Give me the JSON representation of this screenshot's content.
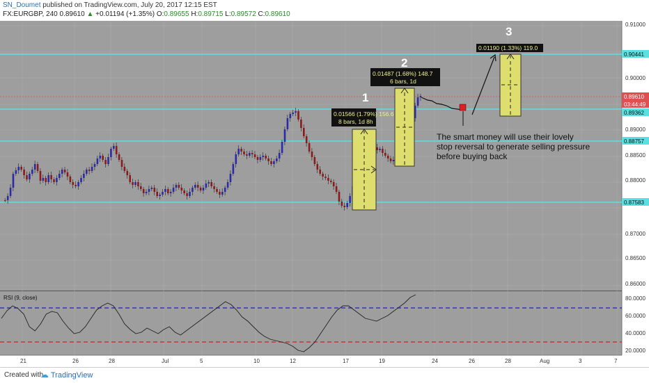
{
  "header": {
    "user": "SN_Doumet",
    "published_text": "published on TradingView.com, July 20, 2017 12:15 EST",
    "symbol": "FX:EURGBP, 240",
    "last": "0.89610",
    "arrow": "▲",
    "change": "+0.01194 (+1.35%)",
    "o_label": "O:",
    "o_val": "0.89655",
    "h_label": "H:",
    "h_val": "0.89715",
    "l_label": "L:",
    "l_val": "0.89572",
    "c_label": "C:",
    "c_val": "0.89610"
  },
  "price_axis": {
    "ticks": [
      "0.91000",
      "0.90000",
      "0.89000",
      "0.88500",
      "0.88000",
      "0.87000",
      "0.86500",
      "0.86000"
    ],
    "tags": [
      {
        "label": "0.90441",
        "color": "#5ae0e0"
      },
      {
        "label": "0.89610",
        "color": "#e05050"
      },
      {
        "label": "03:44:49",
        "color": "#e05050"
      },
      {
        "label": "0.89362",
        "color": "#5ae0e0"
      },
      {
        "label": "0.88757",
        "color": "#5ae0e0"
      },
      {
        "label": "0.87583",
        "color": "#5ae0e0"
      }
    ]
  },
  "rsi": {
    "label": "RSI (9, close)",
    "ticks": [
      "80.0000",
      "60.0000",
      "40.0000",
      "20.0000"
    ]
  },
  "time_axis": {
    "labels": [
      "21",
      "26",
      "28",
      "Jul",
      "5",
      "10",
      "12",
      "17",
      "19",
      "24",
      "26",
      "28",
      "Aug",
      "3",
      "7"
    ]
  },
  "annotations": {
    "n1": "1",
    "n2": "2",
    "n3": "3",
    "box1_line1": "0.01566 (1.79%) 156.6",
    "box1_line2": "8 bars, 1d 8h",
    "box2_line1": "0.01487 (1.68%) 148.7",
    "box2_line2": "6 bars, 1d",
    "box3_line1": "0.01190 (1.33%) 119.0",
    "note_line1": "The smart money will use their lovely",
    "note_line2": "stop reversal to generate selling pressure",
    "note_line3": "before buying back"
  },
  "footer": {
    "created_with": "Created with",
    "brand": "TradingView"
  },
  "colors": {
    "chart_bg": "#9e9e9e",
    "bull": "#2b2ba8",
    "bear": "#8c1a1a",
    "hline": "#5ae0e0",
    "price_line": "#e05050",
    "measure_fill": "#dede6e"
  }
}
